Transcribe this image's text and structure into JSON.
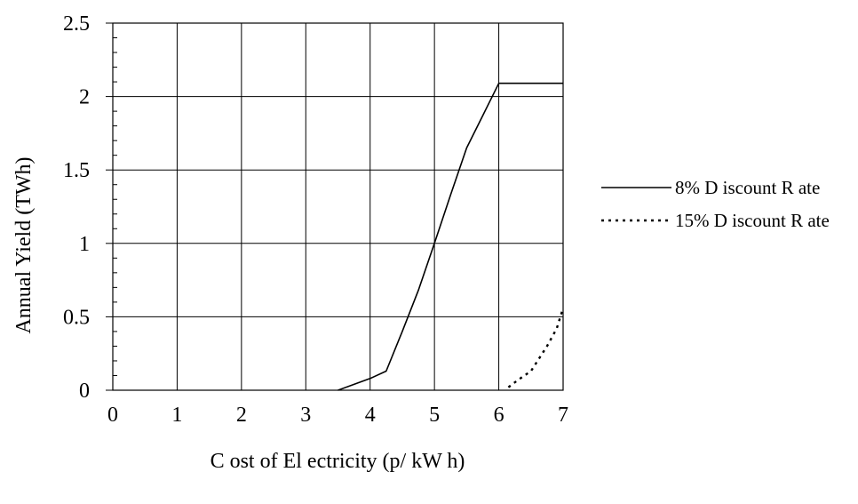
{
  "colors": {
    "line": "#000000",
    "grid": "#000000",
    "background": "#ffffff"
  },
  "chart_data": {
    "type": "line",
    "title": "",
    "xlabel": "C ost of El ectricity  (p/ kW h)",
    "ylabel": "Annual Yield (TWh)",
    "xlim": [
      0,
      7
    ],
    "ylim": [
      0,
      2.5
    ],
    "xticks": [
      0,
      1,
      2,
      3,
      4,
      5,
      6,
      7
    ],
    "xtick_labels": [
      "0",
      "1",
      "2",
      "3",
      "4",
      "5",
      "6",
      "7"
    ],
    "yticks": [
      0,
      0.5,
      1,
      1.5,
      2,
      2.5
    ],
    "ytick_labels": [
      "0",
      "0.5",
      "1",
      "1.5",
      "2",
      "2.5"
    ],
    "y_minor_step": 0.1,
    "grid": true,
    "legend_position": "right",
    "series": [
      {
        "name": "8% D iscount R ate",
        "style": "solid",
        "x": [
          3.5,
          3.75,
          4.0,
          4.25,
          4.5,
          4.75,
          5.0,
          5.25,
          5.5,
          5.75,
          6.0,
          7.0
        ],
        "y": [
          0.0,
          0.04,
          0.08,
          0.13,
          0.4,
          0.68,
          1.0,
          1.33,
          1.65,
          1.87,
          2.09,
          2.09
        ]
      },
      {
        "name": "15% D iscount R ate",
        "style": "dotted",
        "x": [
          6.15,
          6.3,
          6.5,
          6.75,
          6.9,
          7.0
        ],
        "y": [
          0.02,
          0.07,
          0.13,
          0.3,
          0.42,
          0.56
        ]
      }
    ]
  }
}
